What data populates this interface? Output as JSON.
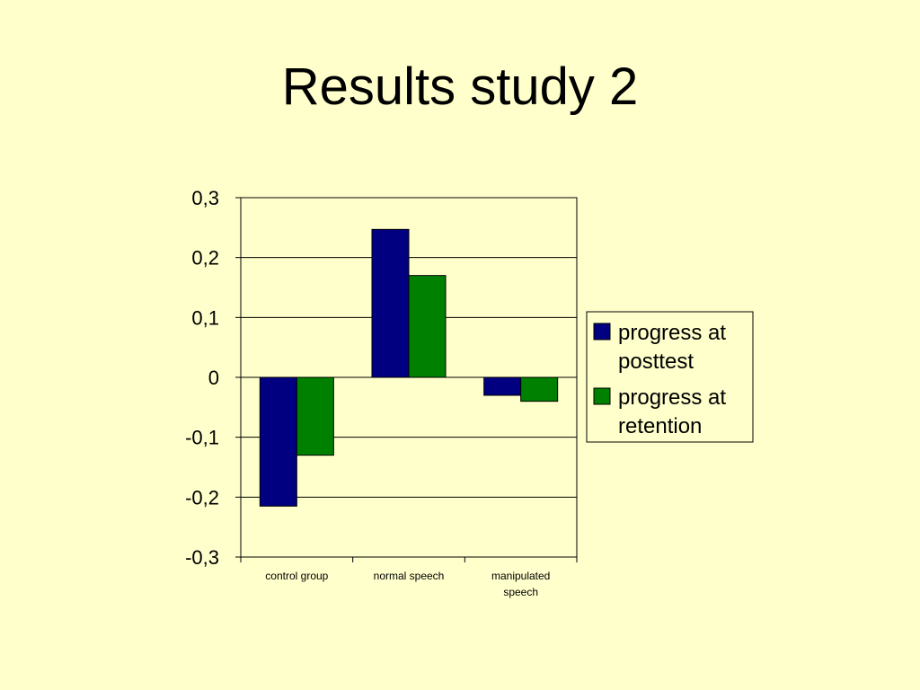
{
  "title": "Results study 2",
  "colors": {
    "background": "#ffffcc",
    "series_posttest": "#000080",
    "series_retention": "#008000"
  },
  "chart_data": {
    "type": "bar",
    "categories": [
      "control group",
      "normal speech",
      "manipulated speech"
    ],
    "category_label_lines": [
      [
        "control group"
      ],
      [
        "normal speech"
      ],
      [
        "manipulated",
        "speech"
      ]
    ],
    "series": [
      {
        "name": "progress at posttest",
        "name_lines": [
          "progress at",
          "posttest"
        ],
        "color": "#000080",
        "values": [
          -0.215,
          0.247,
          -0.03
        ]
      },
      {
        "name": "progress at retention",
        "name_lines": [
          "progress at",
          "retention"
        ],
        "color": "#008000",
        "values": [
          -0.13,
          0.17,
          -0.04
        ]
      }
    ],
    "ylim": [
      -0.3,
      0.3
    ],
    "yticks": [
      0.3,
      0.2,
      0.1,
      0,
      -0.1,
      -0.2,
      -0.3
    ],
    "ytick_labels": [
      "0,3",
      "0,2",
      "0,1",
      "0",
      "-0,1",
      "-0,2",
      "-0,3"
    ],
    "grid": true,
    "legend_position": "right",
    "xlabel": "",
    "ylabel": ""
  }
}
